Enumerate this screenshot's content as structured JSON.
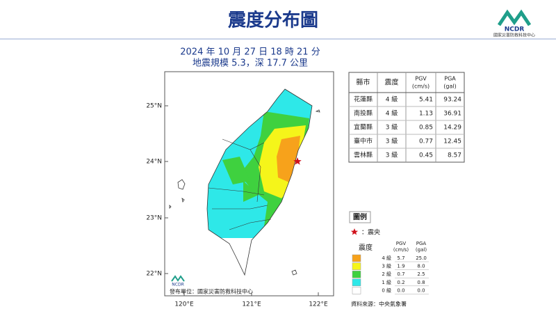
{
  "header": {
    "title": "震度分布圖",
    "logo_text": "NCDR",
    "org": "國家災害防救科技中心"
  },
  "event": {
    "time": "2024 年 10 月 27 日 18 時 21 分",
    "info": "地震規模 5.3，深 17.7 公里"
  },
  "map": {
    "lat_labels": [
      "25°N",
      "24°N",
      "23°N",
      "22°N"
    ],
    "lon_labels": [
      "120°E",
      "121°E",
      "122°E"
    ],
    "publisher": "發布單位：國家災害防救科技中心",
    "logo_text": "NCDR"
  },
  "table": {
    "headers": [
      [
        "縣市"
      ],
      [
        "震度"
      ],
      [
        "PGV",
        "(cm/s)"
      ],
      [
        "PGA",
        "(gal)"
      ]
    ],
    "rows": [
      [
        "花蓮縣",
        "4 級",
        "5.41",
        "93.24"
      ],
      [
        "南投縣",
        "4 級",
        "1.13",
        "36.91"
      ],
      [
        "宜蘭縣",
        "3 級",
        "0.85",
        "14.29"
      ],
      [
        "臺中市",
        "3 級",
        "0.77",
        "12.45"
      ],
      [
        "雲林縣",
        "3 級",
        "0.45",
        "8.57"
      ]
    ]
  },
  "legend": {
    "title": "圖例",
    "epicenter": "：震央",
    "intensity": "震度",
    "pgv": [
      "PGV",
      "(cm/s)"
    ],
    "pga": [
      "PGA",
      "(gal)"
    ],
    "rows": [
      {
        "level": "4 級",
        "pgv": "5.7",
        "pga": "25.0",
        "color": "#f7a21b"
      },
      {
        "level": "3 級",
        "pgv": "1.9",
        "pga": "8.0",
        "color": "#f5f51a"
      },
      {
        "level": "2 級",
        "pgv": "0.7",
        "pga": "2.5",
        "color": "#3fd13f"
      },
      {
        "level": "1 級",
        "pgv": "0.2",
        "pga": "0.8",
        "color": "#2ee8e8"
      },
      {
        "level": "0 級",
        "pgv": "0.0",
        "pga": "0.0",
        "color": "#ffffff"
      }
    ]
  },
  "source": "資料來源：中央氣象署"
}
